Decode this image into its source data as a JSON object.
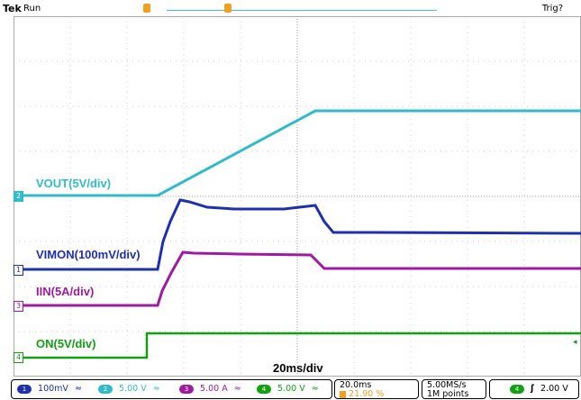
{
  "header": {
    "brand": "Tek",
    "state": "Run",
    "trigger_status": "Trig?"
  },
  "channels": [
    {
      "id": "2",
      "label": "VOUT(5V/div)",
      "color": "#2fbcc8"
    },
    {
      "id": "1",
      "label": "VIMON(100mV/div)",
      "color": "#1e2fb0"
    },
    {
      "id": "3",
      "label": "IIN(5A/div)",
      "color": "#a01aa0"
    },
    {
      "id": "4",
      "label": "ON(5V/div)",
      "color": "#12a012"
    }
  ],
  "timebase": {
    "label": "20ms/div"
  },
  "status_bar": {
    "ch1": {
      "num": "1",
      "scale": "100mV",
      "bw": "≈"
    },
    "ch2": {
      "num": "2",
      "scale": "5.00 V",
      "bw": "≈"
    },
    "ch3": {
      "num": "3",
      "scale": "5.00 A",
      "bw": "≈"
    },
    "ch4": {
      "num": "4",
      "scale": "5.00 V",
      "bw": "≈"
    },
    "horizontal": {
      "scale": "20.0ms",
      "position": "21.90 %"
    },
    "acquisition": {
      "rate": "5.00MS/s",
      "length": "1M points"
    },
    "trigger": {
      "source": "4",
      "slope": "ʃ",
      "level": "2.00 V"
    }
  },
  "colors": {
    "grid": "#aaaaaa",
    "marker": "#f0a020"
  }
}
